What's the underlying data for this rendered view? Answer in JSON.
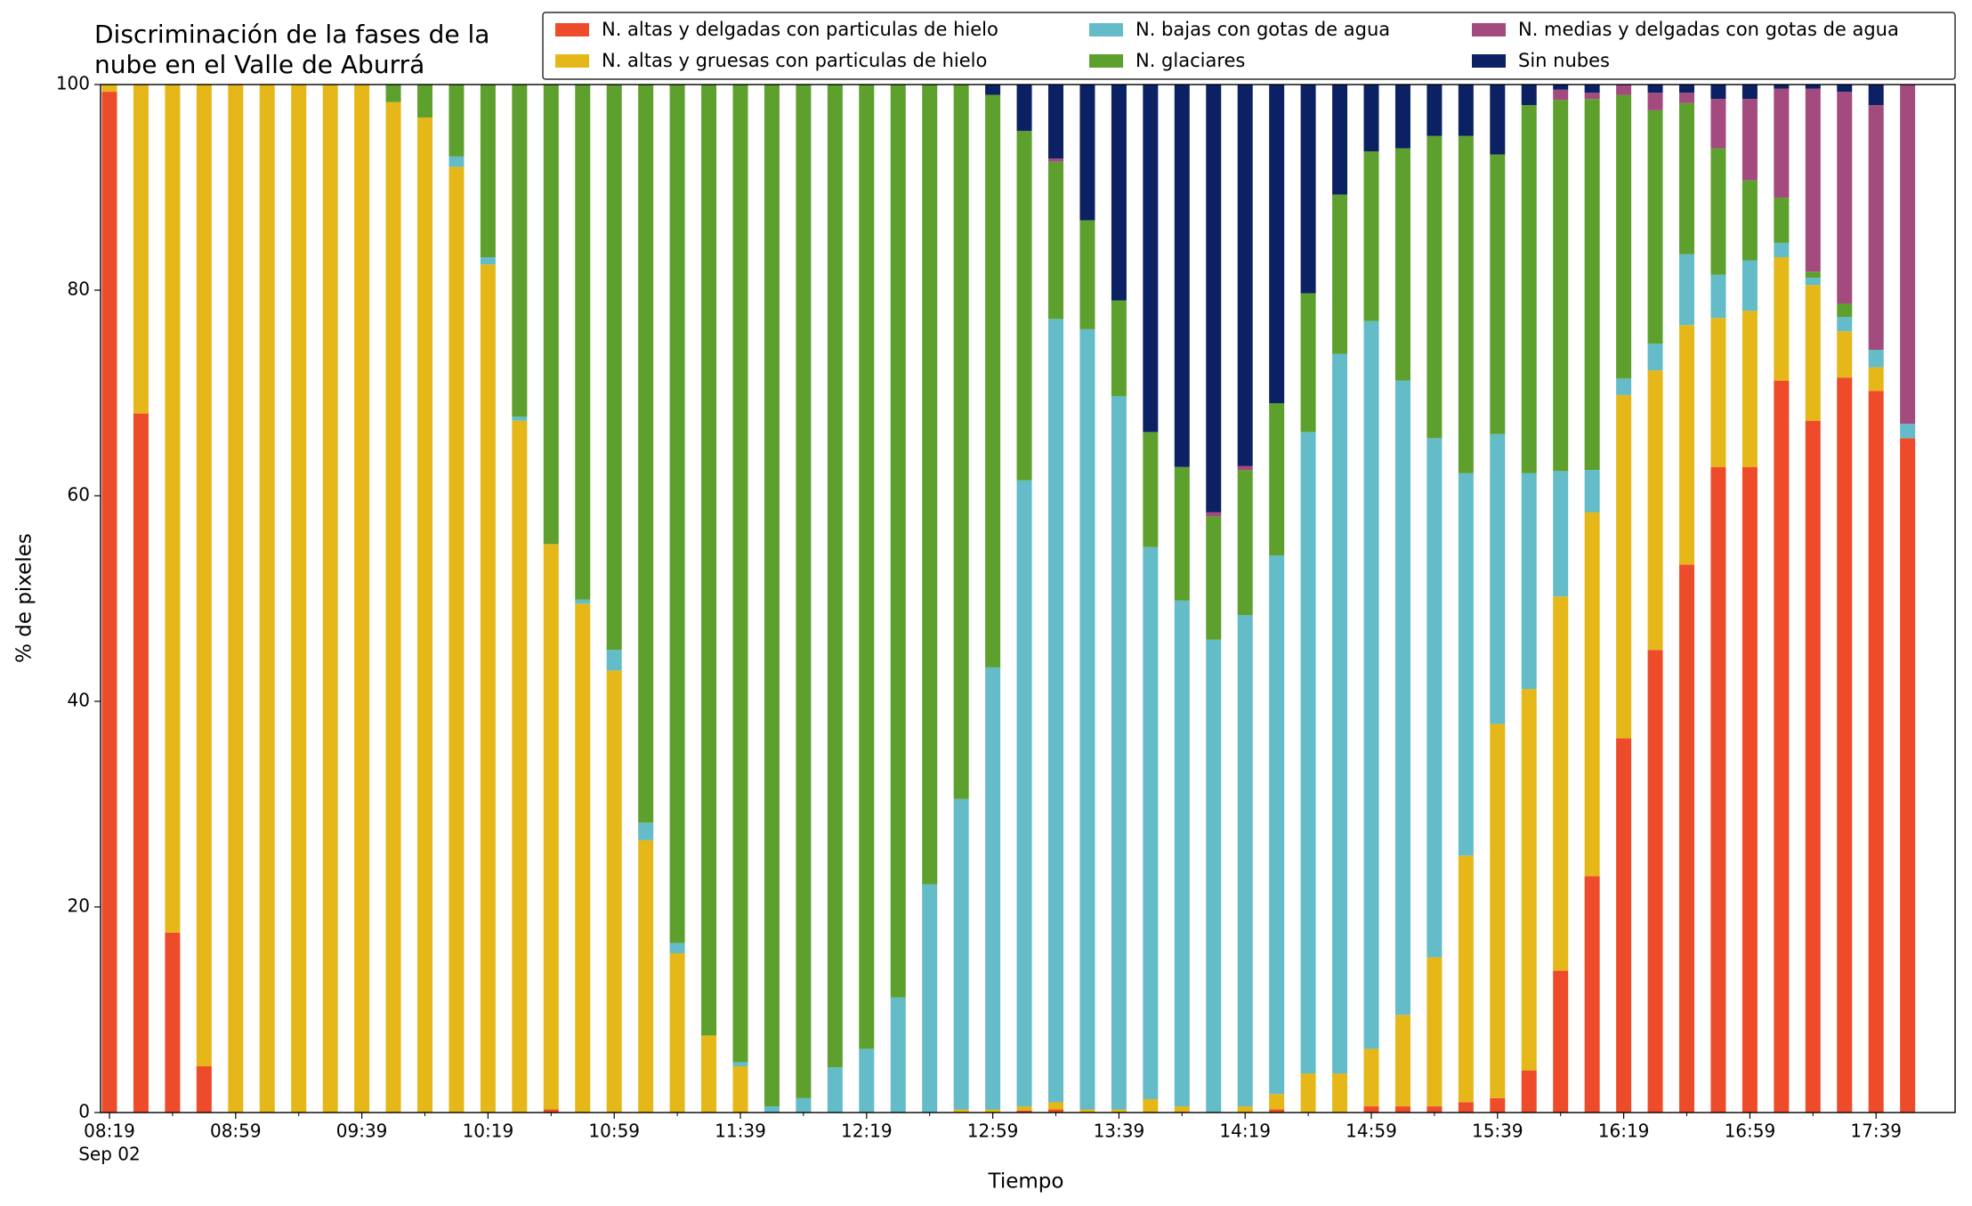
{
  "chart_data": {
    "type": "stacked_bar",
    "title": [
      "Discriminación de la fases de la",
      "nube en el Valle de Aburrá"
    ],
    "xlabel": "Tiempo",
    "ylabel": "% de pixeles",
    "date_label": "Sep 02",
    "categories": [
      "08:19",
      null,
      null,
      null,
      "08:59",
      null,
      null,
      null,
      "09:39",
      null,
      null,
      null,
      "10:19",
      null,
      null,
      null,
      "10:59",
      null,
      null,
      null,
      "11:39",
      null,
      null,
      null,
      "12:19",
      null,
      null,
      null,
      "12:59",
      null,
      null,
      null,
      "13:39",
      null,
      null,
      null,
      "14:19",
      null,
      null,
      null,
      "14:59",
      null,
      null,
      null,
      "15:39",
      null,
      null,
      null,
      "16:19",
      null,
      null,
      null,
      "16:59",
      null,
      null,
      null,
      "17:39",
      null
    ],
    "ylim": [
      0,
      100
    ],
    "yticks": [
      0,
      20,
      40,
      60,
      80,
      100
    ],
    "grid": false,
    "legend": "top",
    "series": [
      {
        "name": "N. altas y delgadas con particulas de hielo",
        "color": "#ee4b2b",
        "values": [
          99.3,
          68,
          17.5,
          4.5,
          0,
          0,
          0,
          0,
          0,
          0,
          0,
          0,
          0,
          0,
          0.3,
          0,
          0,
          0,
          0,
          0,
          0,
          0,
          0,
          0,
          0,
          0,
          0,
          0,
          0,
          0.2,
          0.3,
          0,
          0,
          0,
          0,
          0,
          0,
          0.3,
          0,
          0,
          0.6,
          0.6,
          0.6,
          1,
          1.4,
          4.1,
          13.8,
          23,
          36.4,
          45,
          53.3,
          62.8,
          62.8,
          71.2,
          67.3,
          71.5,
          70.2,
          65.6
        ]
      },
      {
        "name": "N. altas y gruesas con particulas de hielo",
        "color": "#e5b718",
        "values": [
          0.7,
          32,
          82.5,
          95.5,
          100,
          100,
          100,
          100,
          100,
          98.3,
          96.8,
          92,
          82.5,
          67.3,
          55,
          49.5,
          43,
          26.5,
          15.5,
          7.5,
          4.5,
          0,
          0,
          0,
          0,
          0,
          0,
          0.3,
          0.3,
          0.4,
          0.7,
          0.3,
          0.3,
          1.3,
          0.6,
          0,
          0.6,
          1.5,
          3.8,
          3.8,
          5.6,
          8.9,
          14.5,
          24,
          36.4,
          37.1,
          36.4,
          35.4,
          33.4,
          27.2,
          23.3,
          14.5,
          15.2,
          12,
          13.2,
          4.5,
          2.3,
          0
        ]
      },
      {
        "name": "N. bajas con gotas de agua",
        "color": "#63bcc8",
        "values": [
          0,
          0,
          0,
          0,
          0,
          0,
          0,
          0,
          0,
          0,
          0,
          1,
          0.7,
          0.4,
          0,
          0.4,
          2,
          1.7,
          1,
          0,
          0.4,
          0.6,
          1.4,
          4.4,
          6.2,
          11.2,
          22.2,
          30.2,
          43,
          60.9,
          76.2,
          75.9,
          69.4,
          53.7,
          49.2,
          46,
          47.8,
          52.4,
          62.4,
          70,
          70.8,
          61.7,
          50.5,
          37.2,
          28.2,
          21,
          12.2,
          4.1,
          1.6,
          2.6,
          6.9,
          4.2,
          4.9,
          1.4,
          0.7,
          1.4,
          1.7,
          1.4
        ]
      },
      {
        "name": "N. glaciares",
        "color": "#5da02d",
        "values": [
          0,
          0,
          0,
          0,
          0,
          0,
          0,
          0,
          0,
          1.7,
          3.2,
          7,
          16.8,
          32.3,
          44.7,
          50.1,
          55,
          71.8,
          83.5,
          92.5,
          95.1,
          99.4,
          98.6,
          95.6,
          93.8,
          88.8,
          77.8,
          69.5,
          55.7,
          34,
          15.3,
          10.6,
          9.3,
          11.2,
          13,
          12,
          14.1,
          14.8,
          13.5,
          15.5,
          16.5,
          22.6,
          29.4,
          32.8,
          27.2,
          35.8,
          36.1,
          36.1,
          27.6,
          22.7,
          14.7,
          12.3,
          7.8,
          4.4,
          0.6,
          1.3,
          0,
          0
        ]
      },
      {
        "name": "N. medias y delgadas con gotas de agua",
        "color": "#a34a7e",
        "values": [
          0,
          0,
          0,
          0,
          0,
          0,
          0,
          0,
          0,
          0,
          0,
          0,
          0,
          0,
          0,
          0,
          0,
          0,
          0,
          0,
          0,
          0,
          0,
          0,
          0,
          0,
          0,
          0,
          0,
          0,
          0.3,
          0,
          0,
          0,
          0,
          0.4,
          0.4,
          0,
          0,
          0,
          0,
          0,
          0,
          0,
          0,
          0,
          1,
          0.6,
          1,
          1.7,
          1,
          4.8,
          7.9,
          10.6,
          17.8,
          20.6,
          23.8,
          33
        ]
      },
      {
        "name": "Sin nubes",
        "color": "#0c2163",
        "values": [
          0,
          0,
          0,
          0,
          0,
          0,
          0,
          0,
          0,
          0,
          0,
          0,
          0,
          0,
          0,
          0,
          0,
          0,
          0,
          0,
          0,
          0,
          0,
          0,
          0,
          0,
          0,
          0,
          1,
          4.5,
          7.2,
          13.2,
          21,
          33.8,
          37.2,
          41.6,
          37.1,
          31,
          20.3,
          10.7,
          6.5,
          6.2,
          5,
          5,
          6.8,
          2,
          0.5,
          0.8,
          0,
          0.8,
          0.8,
          1.4,
          1.4,
          0.4,
          0.4,
          0.7,
          2,
          0
        ]
      }
    ]
  }
}
